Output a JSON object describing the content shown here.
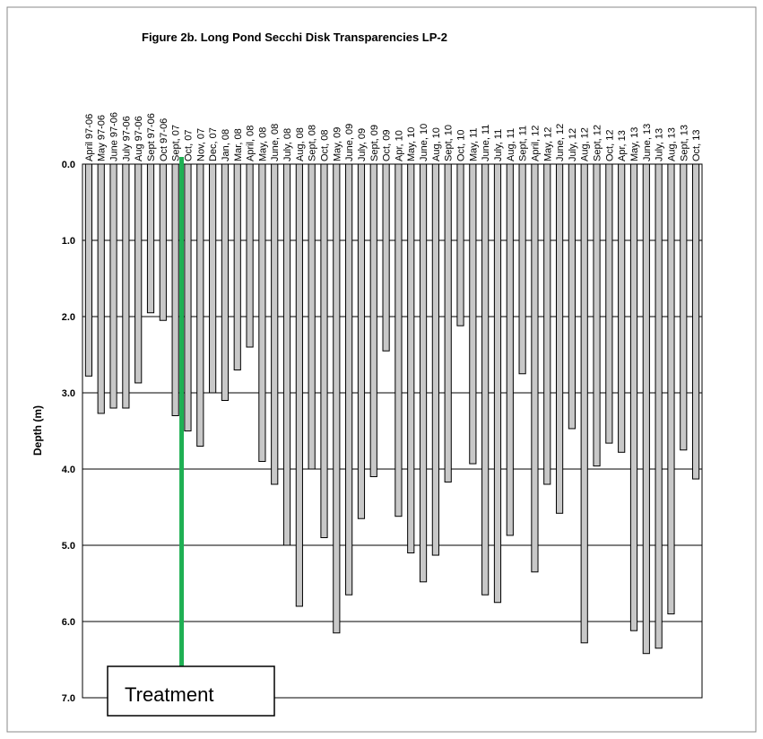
{
  "chart_data": {
    "type": "bar",
    "title": "Figure 2b.  Long Pond Secchi Disk Transparencies LP-2",
    "ylabel": "Depth (m)",
    "xlabel": "",
    "ylim": [
      0,
      7
    ],
    "y_inverted": true,
    "y_ticks": [
      "0.0",
      "1.0",
      "2.0",
      "3.0",
      "4.0",
      "5.0",
      "6.0",
      "7.0"
    ],
    "grid": true,
    "categories": [
      "April 97-06",
      "May 97-06",
      "June 97-06",
      "July 97-06",
      "Aug 97-06",
      "Sept 97-06",
      "Oct 97-06",
      "Sept, 07",
      "Oct, 07",
      "Nov, 07",
      "Dec, 07",
      "Jan, 08",
      "Mar, 08",
      "April, 08",
      "May, 08",
      "June, 08",
      "July, 08",
      "Aug, 08",
      "Sept, 08",
      "Oct, 08",
      "May, 09",
      "June, 09",
      "July, 09",
      "Sept, 09",
      "Oct, 09",
      "Apr, 10",
      "May, 10",
      "June, 10",
      "Aug, 10",
      "Sept, 10",
      "Oct, 10",
      "May, 11",
      "June, 11",
      "July, 11",
      "Aug, 11",
      "Sept, 11",
      "April, 12",
      "May, 12",
      "June, 12",
      "July, 12",
      "Aug, 12",
      "Sept, 12",
      "Oct, 12",
      "Apr, 13",
      "May, 13",
      "June, 13",
      "July, 13",
      "Aug, 13",
      "Sept, 13",
      "Oct, 13"
    ],
    "values": [
      2.78,
      3.27,
      3.2,
      3.2,
      2.87,
      1.95,
      2.05,
      3.3,
      3.5,
      3.7,
      3.0,
      3.1,
      2.7,
      2.4,
      3.9,
      4.2,
      5.0,
      5.8,
      4.0,
      4.9,
      6.15,
      5.65,
      4.65,
      4.1,
      2.45,
      4.62,
      5.1,
      5.48,
      5.13,
      4.17,
      2.12,
      3.93,
      5.65,
      5.75,
      4.87,
      2.75,
      5.35,
      4.2,
      4.58,
      3.47,
      6.28,
      3.96,
      3.66,
      3.78,
      6.12,
      6.42,
      6.35,
      5.9,
      3.75,
      4.13
    ],
    "annotation": {
      "label": "Treatment",
      "after_category": "Sept, 07",
      "color": "#1eb053"
    }
  }
}
